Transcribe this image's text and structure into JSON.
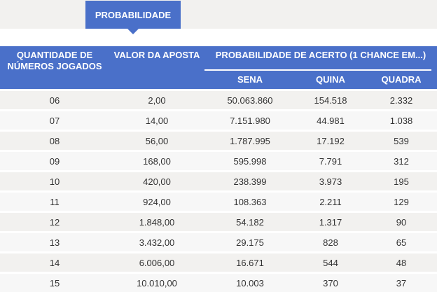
{
  "tab": {
    "label": "PROBABILIDADE"
  },
  "table": {
    "headers": {
      "quantidade": "QUANTIDADE DE NÚMEROS JOGADOS",
      "valor": "VALOR DA APOSTA",
      "probabilidade": "PROBABILIDADE DE ACERTO (1 CHANCE EM...)",
      "sena": "SENA",
      "quina": "QUINA",
      "quadra": "QUADRA"
    },
    "rows": [
      {
        "qtd": "06",
        "valor": "2,00",
        "sena": "50.063.860",
        "quina": "154.518",
        "quadra": "2.332"
      },
      {
        "qtd": "07",
        "valor": "14,00",
        "sena": "7.151.980",
        "quina": "44.981",
        "quadra": "1.038"
      },
      {
        "qtd": "08",
        "valor": "56,00",
        "sena": "1.787.995",
        "quina": "17.192",
        "quadra": "539"
      },
      {
        "qtd": "09",
        "valor": "168,00",
        "sena": "595.998",
        "quina": "7.791",
        "quadra": "312"
      },
      {
        "qtd": "10",
        "valor": "420,00",
        "sena": "238.399",
        "quina": "3.973",
        "quadra": "195"
      },
      {
        "qtd": "11",
        "valor": "924,00",
        "sena": "108.363",
        "quina": "2.211",
        "quadra": "129"
      },
      {
        "qtd": "12",
        "valor": "1.848,00",
        "sena": "54.182",
        "quina": "1.317",
        "quadra": "90"
      },
      {
        "qtd": "13",
        "valor": "3.432,00",
        "sena": "29.175",
        "quina": "828",
        "quadra": "65"
      },
      {
        "qtd": "14",
        "valor": "6.006,00",
        "sena": "16.671",
        "quina": "544",
        "quadra": "48"
      },
      {
        "qtd": "15",
        "valor": "10.010,00",
        "sena": "10.003",
        "quina": "370",
        "quadra": "37"
      }
    ]
  },
  "colors": {
    "accent": "#4a70c9",
    "row_odd": "#f2f1ef",
    "row_even": "#f7f7f7"
  }
}
